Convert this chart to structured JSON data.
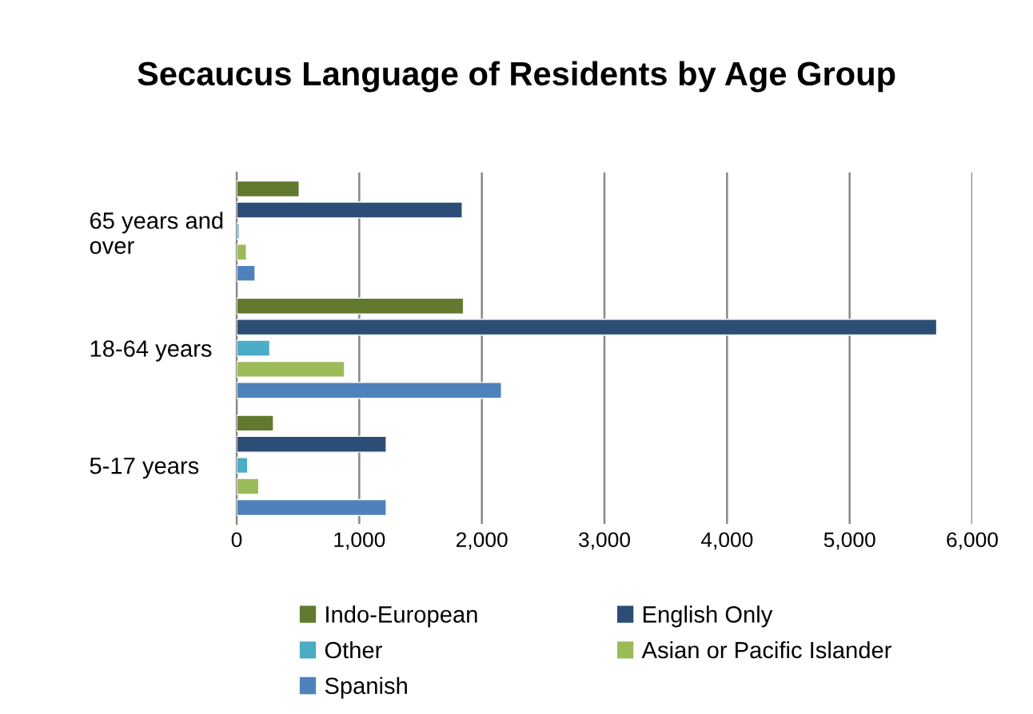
{
  "chart_data": {
    "type": "bar",
    "orientation": "horizontal",
    "title": "Secaucus Language of Residents by Age Group",
    "categories": [
      "65 years and over",
      "18-64 years",
      "5-17 years"
    ],
    "series": [
      {
        "name": "Indo-European",
        "color": "#617a30",
        "values": [
          510,
          1850,
          300
        ]
      },
      {
        "name": "English Only",
        "color": "#2c4d75",
        "values": [
          1840,
          5710,
          1220
        ]
      },
      {
        "name": "Other",
        "color": "#4bacc6",
        "values": [
          20,
          270,
          90
        ]
      },
      {
        "name": "Asian or Pacific Islander",
        "color": "#9bbb59",
        "values": [
          80,
          880,
          180
        ]
      },
      {
        "name": "Spanish",
        "color": "#4f81bd",
        "values": [
          150,
          2160,
          1220
        ]
      }
    ],
    "xlim": [
      0,
      6000
    ],
    "xticks": [
      {
        "value": 0,
        "label": "0"
      },
      {
        "value": 1000,
        "label": "1,000"
      },
      {
        "value": 2000,
        "label": "2,000"
      },
      {
        "value": 3000,
        "label": "3,000"
      },
      {
        "value": 4000,
        "label": "4,000"
      },
      {
        "value": 5000,
        "label": "5,000"
      },
      {
        "value": 6000,
        "label": "6,000"
      }
    ],
    "grid": "x",
    "legend": "bottom"
  }
}
